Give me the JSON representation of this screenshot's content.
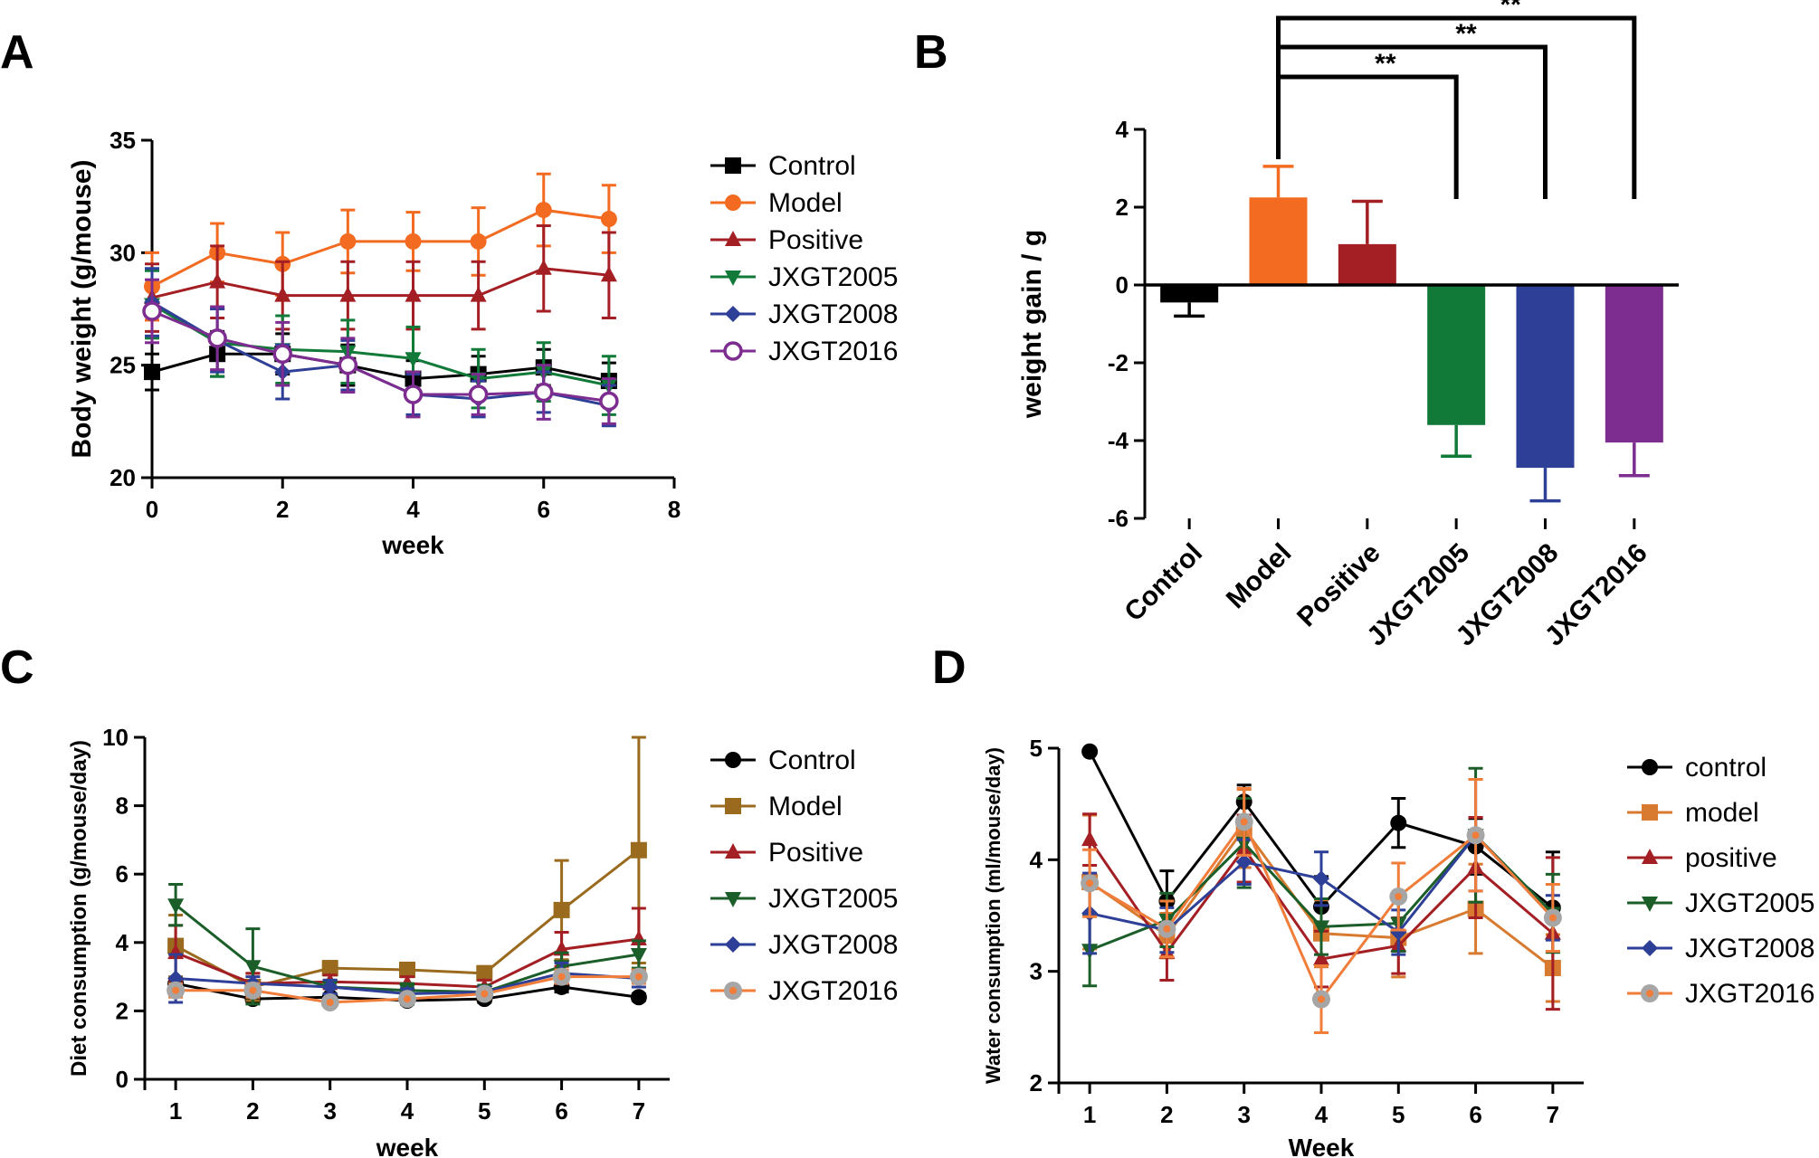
{
  "figure": {
    "panels": [
      "A",
      "B",
      "C",
      "D"
    ]
  },
  "chart_data": [
    {
      "id": "A",
      "type": "line",
      "title": "",
      "xlabel": "week",
      "ylabel": "Body weight (g/mouse)",
      "xlim": [
        0,
        8
      ],
      "ylim": [
        20,
        35
      ],
      "xticks": [
        0,
        2,
        4,
        6,
        8
      ],
      "yticks": [
        20,
        25,
        30,
        35
      ],
      "grid": false,
      "legend": "right",
      "x": [
        0,
        1,
        2,
        3,
        4,
        5,
        6,
        7
      ],
      "series": [
        {
          "name": "Control",
          "color": "#000000",
          "marker": "square",
          "values": [
            24.7,
            25.5,
            25.5,
            25.0,
            24.4,
            24.6,
            24.9,
            24.3
          ],
          "errors": [
            0.8,
            1.0,
            0.9,
            0.9,
            0.8,
            0.8,
            0.8,
            0.8
          ]
        },
        {
          "name": "Model",
          "color": "#F26B21",
          "marker": "circle",
          "values": [
            28.5,
            30.0,
            29.5,
            30.5,
            30.5,
            30.5,
            31.9,
            31.5
          ],
          "errors": [
            1.5,
            1.3,
            1.4,
            1.4,
            1.3,
            1.5,
            1.6,
            1.5
          ]
        },
        {
          "name": "Positive",
          "color": "#A31F24",
          "marker": "triangle-up",
          "values": [
            28.0,
            28.7,
            28.1,
            28.1,
            28.1,
            28.1,
            29.3,
            29.0
          ],
          "errors": [
            1.5,
            1.6,
            1.5,
            1.5,
            1.5,
            1.5,
            1.9,
            1.9
          ]
        },
        {
          "name": "JXGT2005",
          "color": "#117A39",
          "marker": "triangle-down",
          "values": [
            27.7,
            26.0,
            25.7,
            25.6,
            25.3,
            24.4,
            24.7,
            24.1
          ],
          "errors": [
            1.5,
            1.5,
            1.5,
            1.4,
            1.4,
            1.3,
            1.3,
            1.3
          ]
        },
        {
          "name": "JXGT2008",
          "color": "#2E3F97",
          "marker": "diamond",
          "values": [
            27.8,
            26.1,
            24.7,
            25.0,
            23.7,
            23.5,
            23.8,
            23.2
          ],
          "errors": [
            1.5,
            1.4,
            1.2,
            1.1,
            0.9,
            0.8,
            0.9,
            0.9
          ]
        },
        {
          "name": "JXGT2016",
          "color": "#7D2C8F",
          "marker": "open-circle",
          "values": [
            27.4,
            26.2,
            25.5,
            25.0,
            23.7,
            23.7,
            23.8,
            23.4
          ],
          "errors": [
            1.4,
            1.4,
            1.4,
            1.2,
            1.0,
            0.9,
            1.2,
            1.0
          ]
        }
      ]
    },
    {
      "id": "B",
      "type": "bar",
      "title": "",
      "xlabel": "",
      "ylabel": "weight gain / g",
      "ylim": [
        -6,
        4
      ],
      "yticks": [
        -6,
        -4,
        -2,
        0,
        2,
        4
      ],
      "grid": false,
      "categories": [
        "Control",
        "Model",
        "Positive",
        "JXGT2005",
        "JXGT2008",
        "JXGT2016"
      ],
      "values": [
        -0.45,
        2.25,
        1.05,
        -3.6,
        -4.7,
        -4.05
      ],
      "errors": [
        0.35,
        0.8,
        1.1,
        0.8,
        0.85,
        0.85
      ],
      "colors": [
        "#000000",
        "#F26B21",
        "#A31F24",
        "#117A39",
        "#2E3F97",
        "#7D2C8F"
      ],
      "significance": [
        {
          "from": "Model",
          "to": "JXGT2005",
          "label": "**"
        },
        {
          "from": "Model",
          "to": "JXGT2008",
          "label": "**"
        },
        {
          "from": "Model",
          "to": "JXGT2016",
          "label": "**"
        }
      ]
    },
    {
      "id": "C",
      "type": "line",
      "title": "",
      "xlabel": "week",
      "ylabel": "Diet consumption (g/mouse/day)",
      "xlim": [
        0.6,
        7.4
      ],
      "ylim": [
        0,
        10
      ],
      "xticks": [
        1,
        2,
        3,
        4,
        5,
        6,
        7
      ],
      "yticks": [
        0,
        2,
        4,
        6,
        8,
        10
      ],
      "grid": false,
      "legend": "right",
      "x": [
        1,
        2,
        3,
        4,
        5,
        6,
        7
      ],
      "series": [
        {
          "name": "Control",
          "color": "#000000",
          "marker": "circle",
          "values": [
            2.8,
            2.35,
            2.4,
            2.3,
            2.35,
            2.7,
            2.4
          ],
          "errors": [
            0.15,
            0.1,
            0.1,
            0.1,
            0.1,
            0.15,
            0.1
          ]
        },
        {
          "name": "Model",
          "color": "#9A6B1E",
          "marker": "square",
          "values": [
            3.9,
            2.7,
            3.25,
            3.2,
            3.1,
            4.95,
            6.7
          ],
          "errors": [
            0.9,
            0.4,
            0.2,
            0.2,
            0.2,
            1.45,
            3.3
          ]
        },
        {
          "name": "Positive",
          "color": "#A31F24",
          "marker": "triangle-up",
          "values": [
            3.7,
            2.8,
            2.85,
            2.8,
            2.7,
            3.8,
            4.1
          ],
          "errors": [
            0.8,
            0.3,
            0.2,
            0.2,
            0.2,
            0.5,
            0.9
          ]
        },
        {
          "name": "JXGT2005",
          "color": "#1B5E29",
          "marker": "triangle-down",
          "values": [
            5.1,
            3.3,
            2.7,
            2.6,
            2.55,
            3.3,
            3.65
          ],
          "errors": [
            0.6,
            1.1,
            0.2,
            0.2,
            0.2,
            0.4,
            0.4
          ]
        },
        {
          "name": "JXGT2008",
          "color": "#2E3F97",
          "marker": "diamond",
          "values": [
            2.95,
            2.8,
            2.7,
            2.5,
            2.55,
            3.1,
            2.95
          ],
          "errors": [
            0.7,
            0.2,
            0.2,
            0.15,
            0.15,
            0.3,
            0.25
          ]
        },
        {
          "name": "JXGT2016",
          "color": "#F07D3A",
          "marker": "gray-dot",
          "values": [
            2.6,
            2.6,
            2.25,
            2.35,
            2.5,
            3.0,
            3.0
          ],
          "errors": [
            0.2,
            0.2,
            0.1,
            0.1,
            0.15,
            0.2,
            0.2
          ]
        }
      ]
    },
    {
      "id": "D",
      "type": "line",
      "title": "",
      "xlabel": "Week",
      "ylabel": "Water consumption (ml/mouse/day)",
      "xlim": [
        0.6,
        7.4
      ],
      "ylim": [
        2,
        5
      ],
      "xticks": [
        1,
        2,
        3,
        4,
        5,
        6,
        7
      ],
      "yticks": [
        2,
        3,
        4,
        5
      ],
      "grid": false,
      "legend": "right",
      "x": [
        1,
        2,
        3,
        4,
        5,
        6,
        7
      ],
      "series": [
        {
          "name": "control",
          "color": "#000000",
          "marker": "circle",
          "values": [
            4.97,
            3.63,
            4.52,
            3.58,
            4.33,
            4.12,
            3.57
          ],
          "errors": [
            0.0,
            0.27,
            0.15,
            0.27,
            0.22,
            0.25,
            0.5
          ]
        },
        {
          "name": "model",
          "color": "#D87A30",
          "marker": "square",
          "values": [
            3.8,
            3.32,
            4.28,
            3.34,
            3.3,
            3.56,
            3.03
          ],
          "errors": [
            0.6,
            0.2,
            0.35,
            0.3,
            0.35,
            0.4,
            0.3
          ]
        },
        {
          "name": "positive",
          "color": "#A31F24",
          "marker": "triangle-up",
          "values": [
            4.18,
            3.17,
            4.1,
            3.11,
            3.23,
            3.93,
            3.34
          ],
          "errors": [
            0.23,
            0.25,
            0.3,
            0.25,
            0.25,
            0.45,
            0.68
          ]
        },
        {
          "name": "JXGT2005",
          "color": "#1B5E29",
          "marker": "triangle-down",
          "values": [
            3.19,
            3.46,
            4.15,
            3.4,
            3.43,
            4.22,
            3.52
          ],
          "errors": [
            0.32,
            0.24,
            0.4,
            0.25,
            0.25,
            0.6,
            0.35
          ]
        },
        {
          "name": "JXGT2008",
          "color": "#2E3F97",
          "marker": "diamond",
          "values": [
            3.52,
            3.37,
            3.98,
            3.83,
            3.35,
            4.22,
            3.48
          ],
          "errors": [
            0.36,
            0.2,
            0.2,
            0.24,
            0.2,
            0.5,
            0.2
          ]
        },
        {
          "name": "JXGT2016",
          "color": "#F07D3A",
          "marker": "gray-dot",
          "values": [
            3.79,
            3.38,
            4.34,
            2.75,
            3.67,
            4.22,
            3.48
          ],
          "errors": [
            0.3,
            0.25,
            0.3,
            0.3,
            0.3,
            0.5,
            0.3
          ]
        }
      ]
    }
  ]
}
